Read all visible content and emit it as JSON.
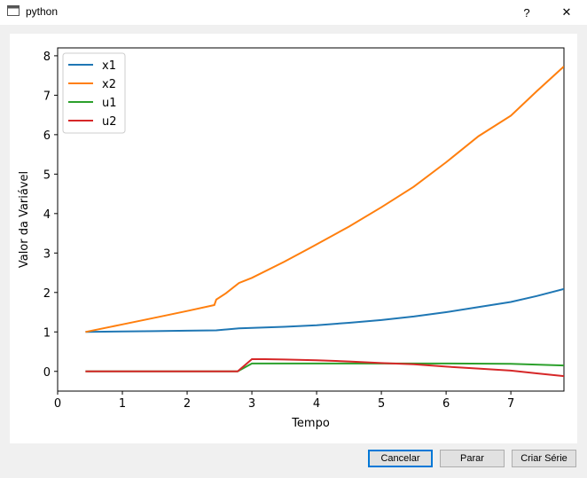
{
  "window": {
    "title": "python",
    "help_glyph": "?",
    "close_glyph": "✕",
    "icon": "window-icon"
  },
  "buttons": {
    "cancel": "Cancelar",
    "stop": "Parar",
    "create": "Criar Série"
  },
  "chart_data": {
    "type": "line",
    "xlabel": "Tempo",
    "ylabel": "Valor da Variável",
    "xlim": [
      0,
      7.82
    ],
    "ylim": [
      -0.5,
      8.2
    ],
    "xticks": [
      0,
      1,
      2,
      3,
      4,
      5,
      6,
      7
    ],
    "yticks": [
      0,
      1,
      2,
      3,
      4,
      5,
      6,
      7,
      8
    ],
    "legend_position": "top-left",
    "grid": false,
    "series": [
      {
        "name": "x1",
        "color": "#1f77b4",
        "x": [
          0.43,
          1.0,
          1.5,
          2.0,
          2.45,
          2.8,
          3.0,
          3.5,
          4.0,
          4.5,
          5.0,
          5.5,
          6.0,
          6.5,
          7.0,
          7.4,
          7.82
        ],
        "y": [
          1.0,
          1.01,
          1.02,
          1.03,
          1.04,
          1.09,
          1.1,
          1.13,
          1.17,
          1.23,
          1.3,
          1.39,
          1.5,
          1.63,
          1.76,
          1.91,
          2.09
        ]
      },
      {
        "name": "x2",
        "color": "#ff7f0e",
        "x": [
          0.43,
          1.0,
          1.5,
          2.0,
          2.42,
          2.45,
          2.6,
          2.8,
          3.0,
          3.5,
          3.9,
          4.5,
          5.0,
          5.5,
          6.0,
          6.5,
          7.0,
          7.4,
          7.82
        ],
        "y": [
          1.0,
          1.19,
          1.36,
          1.53,
          1.68,
          1.82,
          1.98,
          2.24,
          2.37,
          2.78,
          3.13,
          3.67,
          4.16,
          4.68,
          5.3,
          5.96,
          6.48,
          7.1,
          7.73
        ]
      },
      {
        "name": "u1",
        "color": "#2ca02c",
        "x": [
          0.43,
          1.0,
          2.0,
          2.78,
          3.0,
          4.0,
          5.0,
          6.0,
          7.0,
          7.82
        ],
        "y": [
          0.0,
          0.0,
          0.0,
          0.0,
          0.2,
          0.2,
          0.2,
          0.2,
          0.19,
          0.15
        ]
      },
      {
        "name": "u2",
        "color": "#d62728",
        "x": [
          0.43,
          1.0,
          2.0,
          2.78,
          3.0,
          3.2,
          3.5,
          4.0,
          4.5,
          5.0,
          5.5,
          6.0,
          6.5,
          7.0,
          7.4,
          7.82
        ],
        "y": [
          0.0,
          0.0,
          0.0,
          0.0,
          0.31,
          0.31,
          0.3,
          0.28,
          0.25,
          0.21,
          0.18,
          0.12,
          0.07,
          0.02,
          -0.05,
          -0.12
        ]
      }
    ]
  }
}
